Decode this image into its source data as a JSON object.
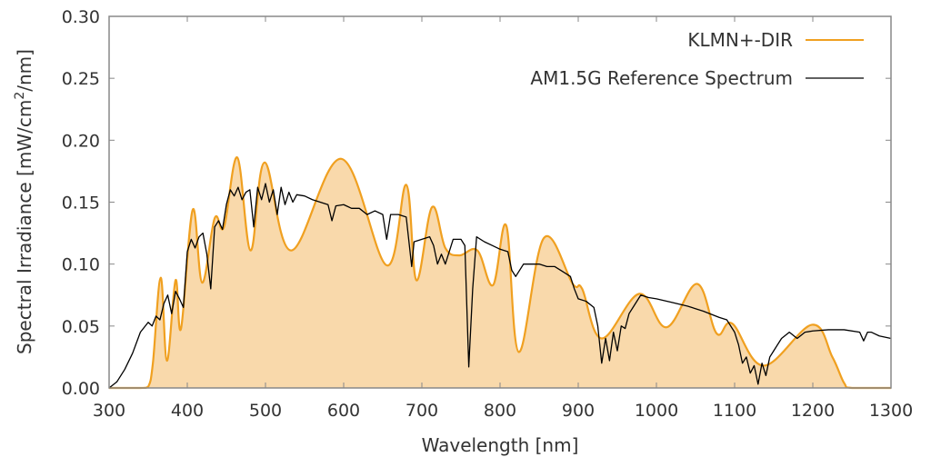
{
  "chart_data": {
    "type": "area",
    "title": "",
    "xlabel": "Wavelength [nm]",
    "ylabel_parts": [
      "Spectral Irradiance [mW/cm",
      "2",
      "/nm]"
    ],
    "xlim": [
      300,
      1300
    ],
    "ylim": [
      0,
      0.3
    ],
    "xticks": [
      "300",
      "400",
      "500",
      "600",
      "700",
      "800",
      "900",
      "1000",
      "1100",
      "1200",
      "1300"
    ],
    "yticks": [
      "0.00",
      "0.05",
      "0.10",
      "0.15",
      "0.20",
      "0.25",
      "0.30"
    ],
    "grid": false,
    "legend_position": "top-right",
    "colors": {
      "klmn": "#f0a020",
      "klmn_fill": "#f9d9ab",
      "am15g": "#000000",
      "axis": "#888888"
    },
    "series": [
      {
        "name": "KLMN+-DIR",
        "style": "filled smooth line",
        "x": [
          300,
          340,
          350,
          356,
          366,
          374,
          385,
          392,
          407,
          419,
          435,
          447,
          464,
          481,
          499,
          533,
          597,
          655,
          680,
          693,
          713,
          730,
          748,
          771,
          791,
          808,
          824,
          856,
          893,
          905,
          930,
          978,
          1013,
          1052,
          1077,
          1097,
          1137,
          1199,
          1225,
          1240,
          1250,
          1300
        ],
        "y": [
          0,
          0,
          0.001,
          0.02,
          0.089,
          0.022,
          0.087,
          0.048,
          0.144,
          0.085,
          0.137,
          0.13,
          0.186,
          0.111,
          0.182,
          0.111,
          0.185,
          0.099,
          0.164,
          0.087,
          0.146,
          0.113,
          0.107,
          0.111,
          0.083,
          0.131,
          0.029,
          0.121,
          0.084,
          0.08,
          0.04,
          0.076,
          0.049,
          0.084,
          0.044,
          0.052,
          0.018,
          0.051,
          0.025,
          0.004,
          0,
          0
        ]
      },
      {
        "name": "AM1.5G Reference Spectrum",
        "style": "line",
        "x": [
          300,
          310,
          320,
          330,
          340,
          350,
          355,
          360,
          365,
          370,
          375,
          380,
          385,
          390,
          395,
          400,
          405,
          410,
          415,
          420,
          425,
          430,
          435,
          440,
          445,
          450,
          455,
          460,
          465,
          470,
          475,
          480,
          485,
          490,
          495,
          500,
          505,
          510,
          515,
          520,
          525,
          530,
          535,
          540,
          550,
          560,
          570,
          580,
          585,
          590,
          600,
          610,
          620,
          630,
          640,
          650,
          655,
          660,
          670,
          680,
          687,
          690,
          700,
          710,
          715,
          720,
          725,
          730,
          740,
          750,
          755,
          760,
          765,
          770,
          780,
          790,
          800,
          810,
          815,
          820,
          830,
          840,
          850,
          860,
          870,
          880,
          890,
          895,
          900,
          910,
          920,
          925,
          930,
          935,
          940,
          945,
          950,
          955,
          960,
          965,
          970,
          980,
          990,
          1000,
          1020,
          1040,
          1060,
          1080,
          1090,
          1100,
          1105,
          1110,
          1115,
          1120,
          1125,
          1130,
          1135,
          1140,
          1145,
          1150,
          1160,
          1170,
          1180,
          1190,
          1200,
          1220,
          1240,
          1260,
          1265,
          1270,
          1275,
          1285,
          1300
        ],
        "y": [
          0,
          0.005,
          0.015,
          0.028,
          0.045,
          0.053,
          0.05,
          0.058,
          0.055,
          0.068,
          0.075,
          0.06,
          0.078,
          0.072,
          0.065,
          0.11,
          0.12,
          0.113,
          0.122,
          0.125,
          0.108,
          0.08,
          0.13,
          0.135,
          0.128,
          0.148,
          0.16,
          0.155,
          0.162,
          0.152,
          0.158,
          0.16,
          0.13,
          0.162,
          0.152,
          0.165,
          0.15,
          0.16,
          0.14,
          0.162,
          0.148,
          0.158,
          0.15,
          0.156,
          0.155,
          0.152,
          0.15,
          0.148,
          0.135,
          0.147,
          0.148,
          0.145,
          0.145,
          0.14,
          0.143,
          0.14,
          0.12,
          0.14,
          0.14,
          0.138,
          0.098,
          0.118,
          0.12,
          0.122,
          0.115,
          0.1,
          0.108,
          0.1,
          0.12,
          0.12,
          0.115,
          0.017,
          0.08,
          0.122,
          0.118,
          0.115,
          0.112,
          0.11,
          0.095,
          0.09,
          0.1,
          0.1,
          0.1,
          0.098,
          0.098,
          0.094,
          0.09,
          0.08,
          0.072,
          0.07,
          0.065,
          0.05,
          0.02,
          0.04,
          0.022,
          0.045,
          0.03,
          0.05,
          0.048,
          0.06,
          0.065,
          0.075,
          0.073,
          0.072,
          0.069,
          0.066,
          0.062,
          0.057,
          0.055,
          0.045,
          0.035,
          0.02,
          0.025,
          0.012,
          0.018,
          0.003,
          0.02,
          0.01,
          0.025,
          0.03,
          0.04,
          0.045,
          0.04,
          0.045,
          0.046,
          0.047,
          0.047,
          0.045,
          0.038,
          0.045,
          0.045,
          0.042,
          0.04
        ]
      }
    ]
  }
}
